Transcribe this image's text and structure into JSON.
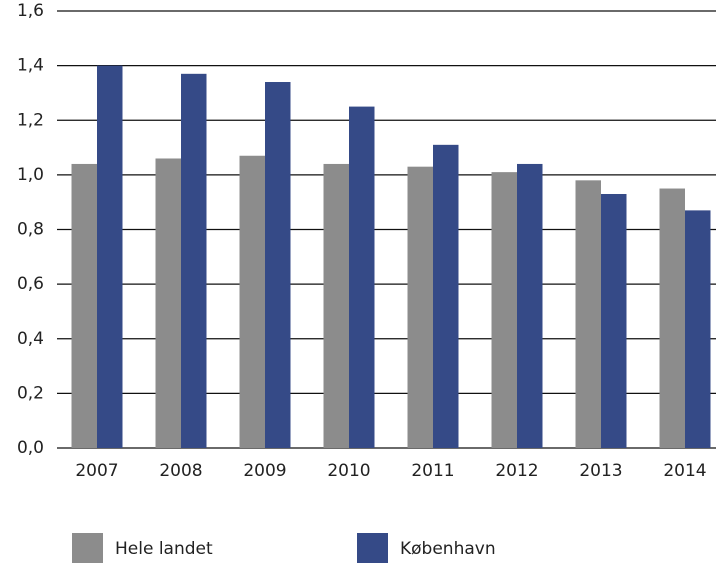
{
  "chart_data": {
    "type": "bar",
    "categories": [
      "2007",
      "2008",
      "2009",
      "2010",
      "2011",
      "2012",
      "2013",
      "2014"
    ],
    "series": [
      {
        "name": "Hele landet",
        "color": "#8c8c8c",
        "values": [
          1.04,
          1.06,
          1.07,
          1.04,
          1.03,
          1.01,
          0.98,
          0.95
        ]
      },
      {
        "name": "København",
        "color": "#354a87",
        "values": [
          1.4,
          1.37,
          1.34,
          1.25,
          1.11,
          1.04,
          0.93,
          0.87
        ]
      }
    ],
    "ylim": [
      0,
      1.6
    ],
    "yticks": [
      {
        "value": 0,
        "label": "0,0"
      },
      {
        "value": 0.2,
        "label": "0,2"
      },
      {
        "value": 0.4,
        "label": "0,4"
      },
      {
        "value": 0.6,
        "label": "0,6"
      },
      {
        "value": 0.8,
        "label": "0,8"
      },
      {
        "value": 1.0,
        "label": "1,0"
      },
      {
        "value": 1.2,
        "label": "1,2"
      },
      {
        "value": 1.4,
        "label": "1,4"
      },
      {
        "value": 1.6,
        "label": "1,6"
      }
    ],
    "grid": true,
    "legend": "bottom"
  }
}
